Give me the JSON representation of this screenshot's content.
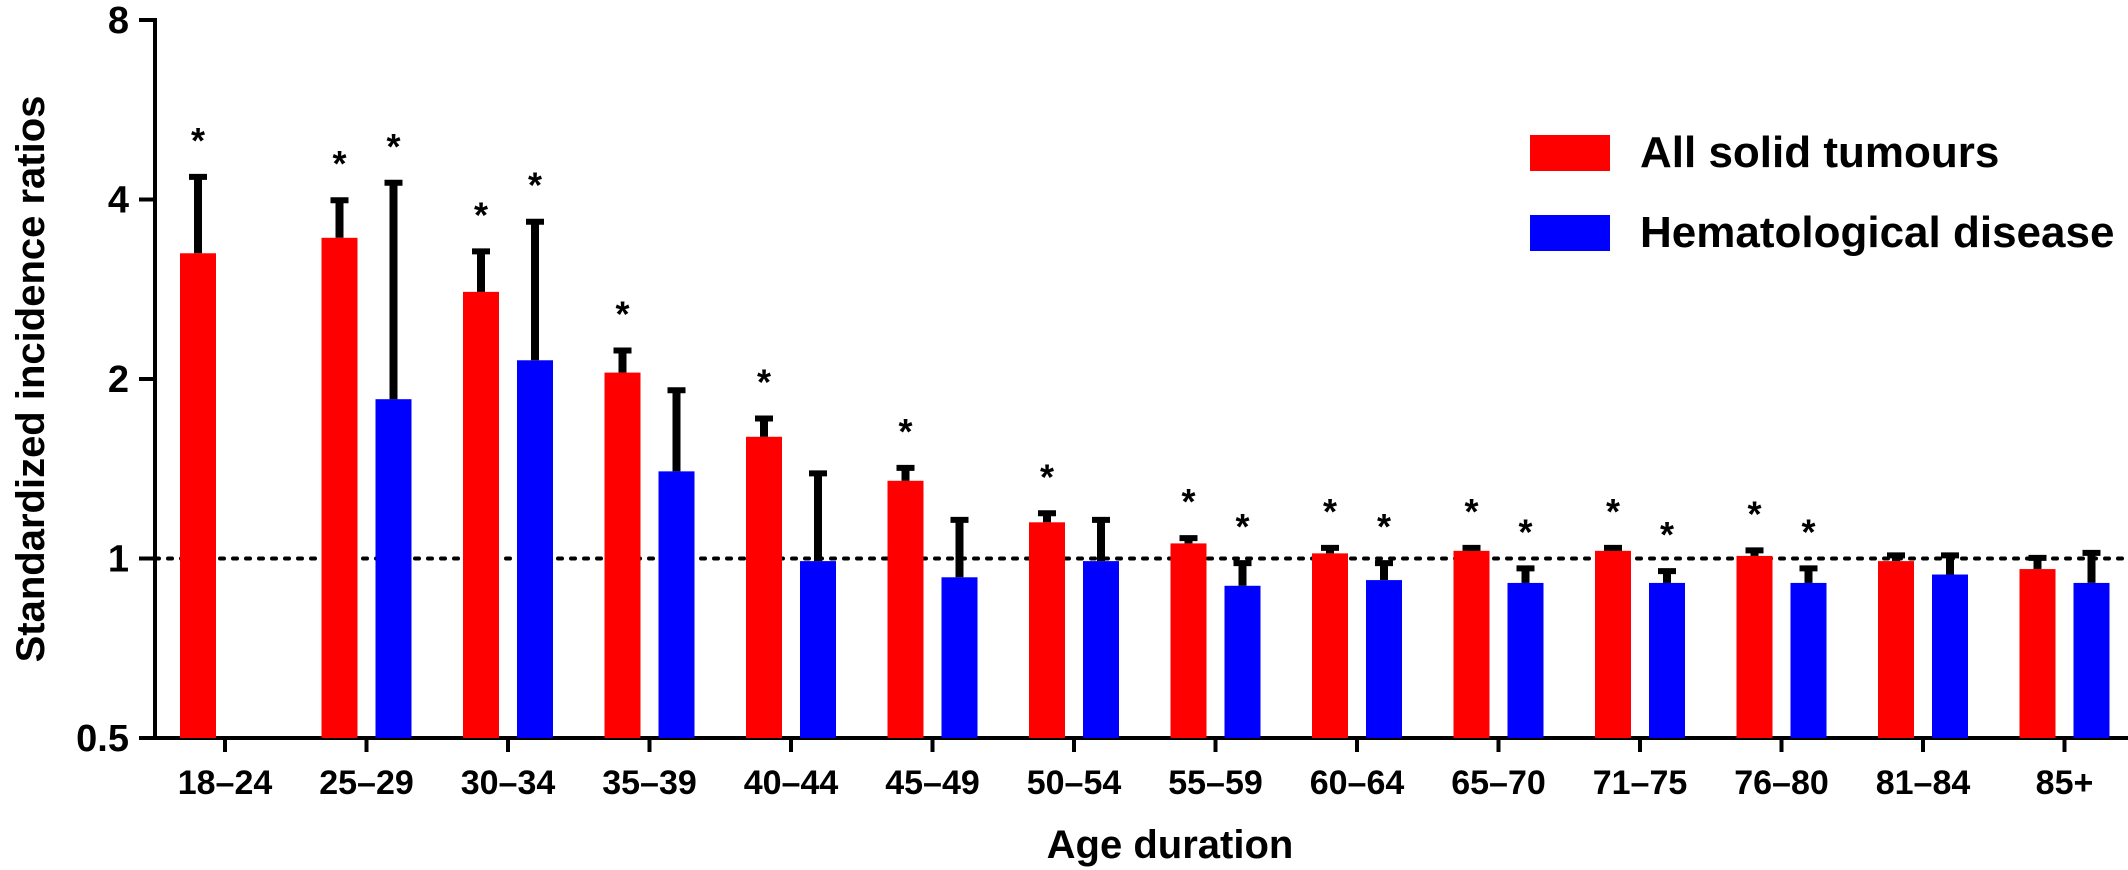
{
  "chart_data": {
    "type": "bar",
    "title": "",
    "xlabel": "Age duration",
    "ylabel": "Standardized incidence ratios",
    "yscale": "log2",
    "ylim": [
      0.5,
      8
    ],
    "yticks": [
      "0.5",
      "1",
      "2",
      "4",
      "8"
    ],
    "reference_line": 1,
    "legend": {
      "position": "top-right"
    },
    "categories": [
      "18–24",
      "25–29",
      "30–34",
      "35–39",
      "40–44",
      "45–49",
      "50–54",
      "55–59",
      "60–64",
      "65–70",
      "71–75",
      "76–80",
      "81–84",
      "85+"
    ],
    "series": [
      {
        "name": "All solid tumours",
        "color": "#ff0000",
        "values": [
          3.25,
          3.45,
          2.8,
          2.05,
          1.6,
          1.35,
          1.15,
          1.06,
          1.02,
          1.03,
          1.03,
          1.01,
          0.99,
          0.96
        ],
        "upper": [
          4.4,
          4.02,
          3.3,
          2.25,
          1.73,
          1.43,
          1.2,
          1.09,
          1.05,
          1.05,
          1.05,
          1.04,
          1.02,
          1.01
        ],
        "significant": [
          "*",
          "*",
          "*",
          "*",
          "*",
          "*",
          "*",
          "*",
          "*",
          "*",
          "*",
          "*",
          "",
          ""
        ]
      },
      {
        "name": "Hematological disease",
        "color": "#0000ff",
        "values": [
          null,
          1.85,
          2.15,
          1.4,
          0.99,
          0.93,
          0.99,
          0.9,
          0.92,
          0.91,
          0.91,
          0.91,
          0.94,
          0.91
        ],
        "upper": [
          null,
          4.3,
          3.7,
          1.93,
          1.4,
          1.17,
          1.17,
          0.99,
          0.99,
          0.97,
          0.96,
          0.97,
          1.02,
          1.03
        ],
        "significant": [
          "",
          "*",
          "*",
          "",
          "",
          "",
          "",
          "*",
          "*",
          "*",
          "*",
          "*",
          "",
          ""
        ]
      }
    ]
  }
}
